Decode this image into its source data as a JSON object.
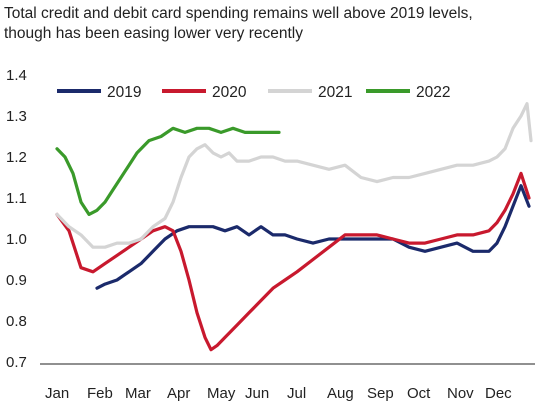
{
  "chart_data": {
    "type": "line",
    "title_lines": [
      "Total credit and debit card spending remains well above 2019 levels,",
      "though has been easing lower very recently"
    ],
    "xlabel": "",
    "ylabel": "",
    "x_ticks": [
      "Jan",
      "Feb",
      "Mar",
      "Apr",
      "May",
      "Jun",
      "Jul",
      "Aug",
      "Sep",
      "Oct",
      "Nov",
      "Dec"
    ],
    "y_ticks": [
      "0.7",
      "0.8",
      "0.9",
      "1.0",
      "1.1",
      "1.2",
      "1.3",
      "1.4"
    ],
    "xlim": [
      0,
      12
    ],
    "ylim": [
      0.7,
      1.4
    ],
    "grid": false,
    "legend_position": "top",
    "series": [
      {
        "name": "2019",
        "color": "#1b2a6b",
        "x": [
          1.0,
          1.2,
          1.5,
          1.8,
          2.1,
          2.4,
          2.7,
          3.0,
          3.3,
          3.6,
          3.9,
          4.2,
          4.5,
          4.8,
          5.1,
          5.4,
          5.7,
          6.0,
          6.4,
          6.8,
          7.2,
          7.6,
          8.0,
          8.4,
          8.8,
          9.2,
          9.6,
          10.0,
          10.4,
          10.8,
          11.0,
          11.2,
          11.4,
          11.6,
          11.8
        ],
        "y": [
          0.88,
          0.89,
          0.9,
          0.92,
          0.94,
          0.97,
          1.0,
          1.02,
          1.03,
          1.03,
          1.03,
          1.02,
          1.03,
          1.01,
          1.03,
          1.01,
          1.01,
          1.0,
          0.99,
          1.0,
          1.0,
          1.0,
          1.0,
          1.0,
          0.98,
          0.97,
          0.98,
          0.99,
          0.97,
          0.97,
          0.99,
          1.03,
          1.08,
          1.13,
          1.08
        ]
      },
      {
        "name": "2020",
        "color": "#c8192e",
        "x": [
          0.0,
          0.3,
          0.6,
          0.9,
          1.2,
          1.5,
          1.8,
          2.1,
          2.4,
          2.7,
          2.9,
          3.1,
          3.3,
          3.5,
          3.7,
          3.85,
          4.0,
          4.2,
          4.5,
          4.8,
          5.1,
          5.4,
          5.7,
          6.0,
          6.4,
          6.8,
          7.2,
          7.6,
          8.0,
          8.4,
          8.8,
          9.2,
          9.6,
          10.0,
          10.4,
          10.8,
          11.0,
          11.2,
          11.4,
          11.6,
          11.8
        ],
        "y": [
          1.06,
          1.02,
          0.93,
          0.92,
          0.94,
          0.96,
          0.98,
          1.0,
          1.02,
          1.03,
          1.02,
          0.97,
          0.9,
          0.82,
          0.76,
          0.73,
          0.74,
          0.76,
          0.79,
          0.82,
          0.85,
          0.88,
          0.9,
          0.92,
          0.95,
          0.98,
          1.01,
          1.01,
          1.01,
          1.0,
          0.99,
          0.99,
          1.0,
          1.01,
          1.01,
          1.02,
          1.04,
          1.07,
          1.11,
          1.16,
          1.1
        ]
      },
      {
        "name": "2021",
        "color": "#d4d4d4",
        "x": [
          0.0,
          0.3,
          0.6,
          0.9,
          1.2,
          1.5,
          1.8,
          2.1,
          2.4,
          2.7,
          2.9,
          3.1,
          3.3,
          3.5,
          3.7,
          3.9,
          4.1,
          4.3,
          4.5,
          4.8,
          5.1,
          5.4,
          5.7,
          6.0,
          6.4,
          6.8,
          7.2,
          7.6,
          8.0,
          8.4,
          8.8,
          9.2,
          9.6,
          10.0,
          10.4,
          10.8,
          11.0,
          11.2,
          11.4,
          11.6,
          11.75,
          11.85
        ],
        "y": [
          1.06,
          1.03,
          1.01,
          0.98,
          0.98,
          0.99,
          0.99,
          1.0,
          1.03,
          1.05,
          1.09,
          1.15,
          1.2,
          1.22,
          1.23,
          1.21,
          1.2,
          1.21,
          1.19,
          1.19,
          1.2,
          1.2,
          1.19,
          1.19,
          1.18,
          1.17,
          1.18,
          1.15,
          1.14,
          1.15,
          1.15,
          1.16,
          1.17,
          1.18,
          1.18,
          1.19,
          1.2,
          1.22,
          1.27,
          1.3,
          1.33,
          1.24
        ]
      },
      {
        "name": "2022",
        "color": "#3a9a2a",
        "x": [
          0.0,
          0.2,
          0.4,
          0.6,
          0.8,
          1.0,
          1.2,
          1.4,
          1.6,
          1.8,
          2.0,
          2.3,
          2.6,
          2.9,
          3.2,
          3.5,
          3.8,
          4.1,
          4.4,
          4.7,
          5.0,
          5.3,
          5.55
        ],
        "y": [
          1.22,
          1.2,
          1.16,
          1.09,
          1.06,
          1.07,
          1.09,
          1.12,
          1.15,
          1.18,
          1.21,
          1.24,
          1.25,
          1.27,
          1.26,
          1.27,
          1.27,
          1.26,
          1.27,
          1.26,
          1.26,
          1.26,
          1.26
        ]
      }
    ]
  }
}
